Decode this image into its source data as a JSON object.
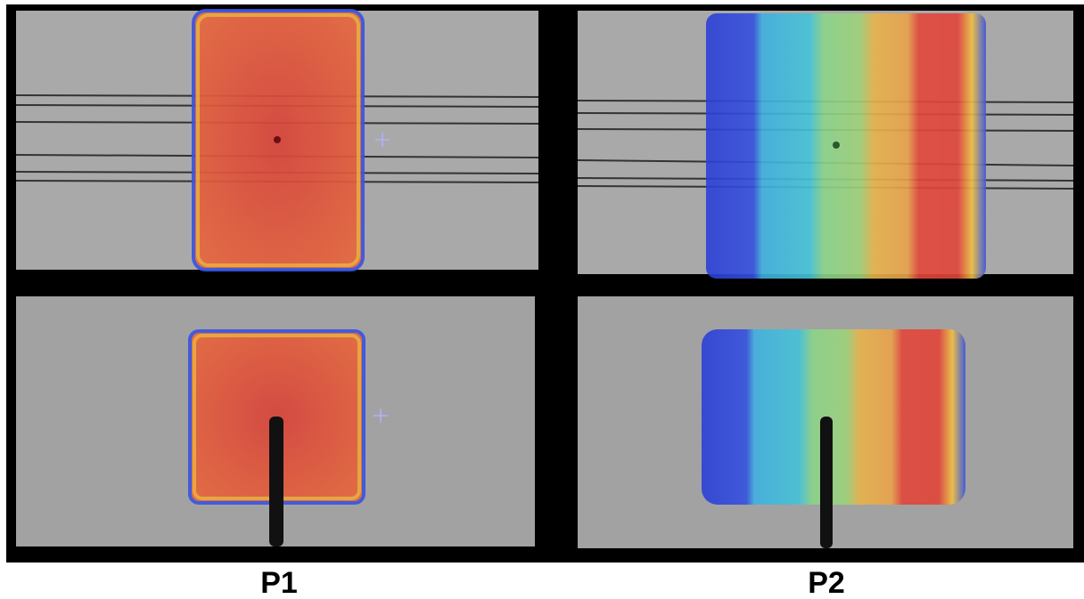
{
  "labels": [
    "P1",
    "P2"
  ]
}
